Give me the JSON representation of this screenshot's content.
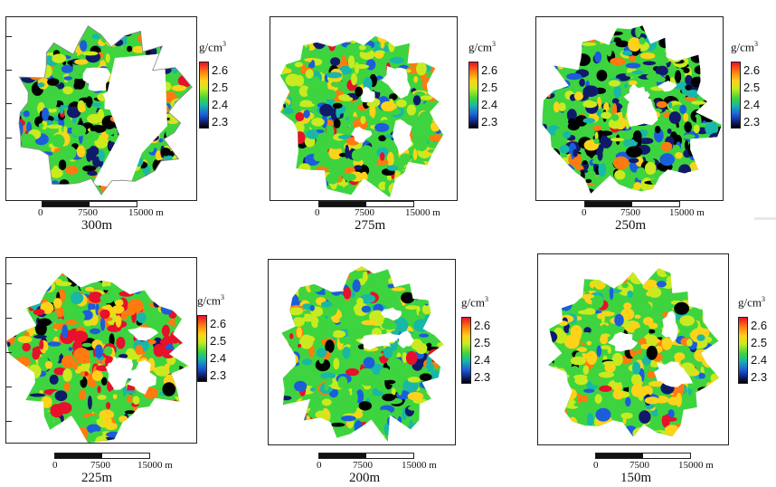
{
  "colorbar": {
    "title": "g/cm",
    "title_sup": "3",
    "labels": [
      "2.6",
      "2.5",
      "2.4",
      "2.3"
    ],
    "colors": [
      "#e8102b",
      "#ff7a10",
      "#ffd21a",
      "#c9ea1f",
      "#3dd43f",
      "#18b7a7",
      "#1c5ddb",
      "#101a6a",
      "#000000"
    ]
  },
  "scale": {
    "zero": "0",
    "mid": "7500",
    "end": "15000 m"
  },
  "panels": [
    {
      "depth": "300m",
      "style": "outlined"
    },
    {
      "depth": "275m",
      "style": "mixed"
    },
    {
      "depth": "250m",
      "style": "dark-blue"
    },
    {
      "depth": "225m",
      "style": "hot"
    },
    {
      "depth": "200m",
      "style": "green"
    },
    {
      "depth": "150m",
      "style": "yellow-green"
    }
  ]
}
